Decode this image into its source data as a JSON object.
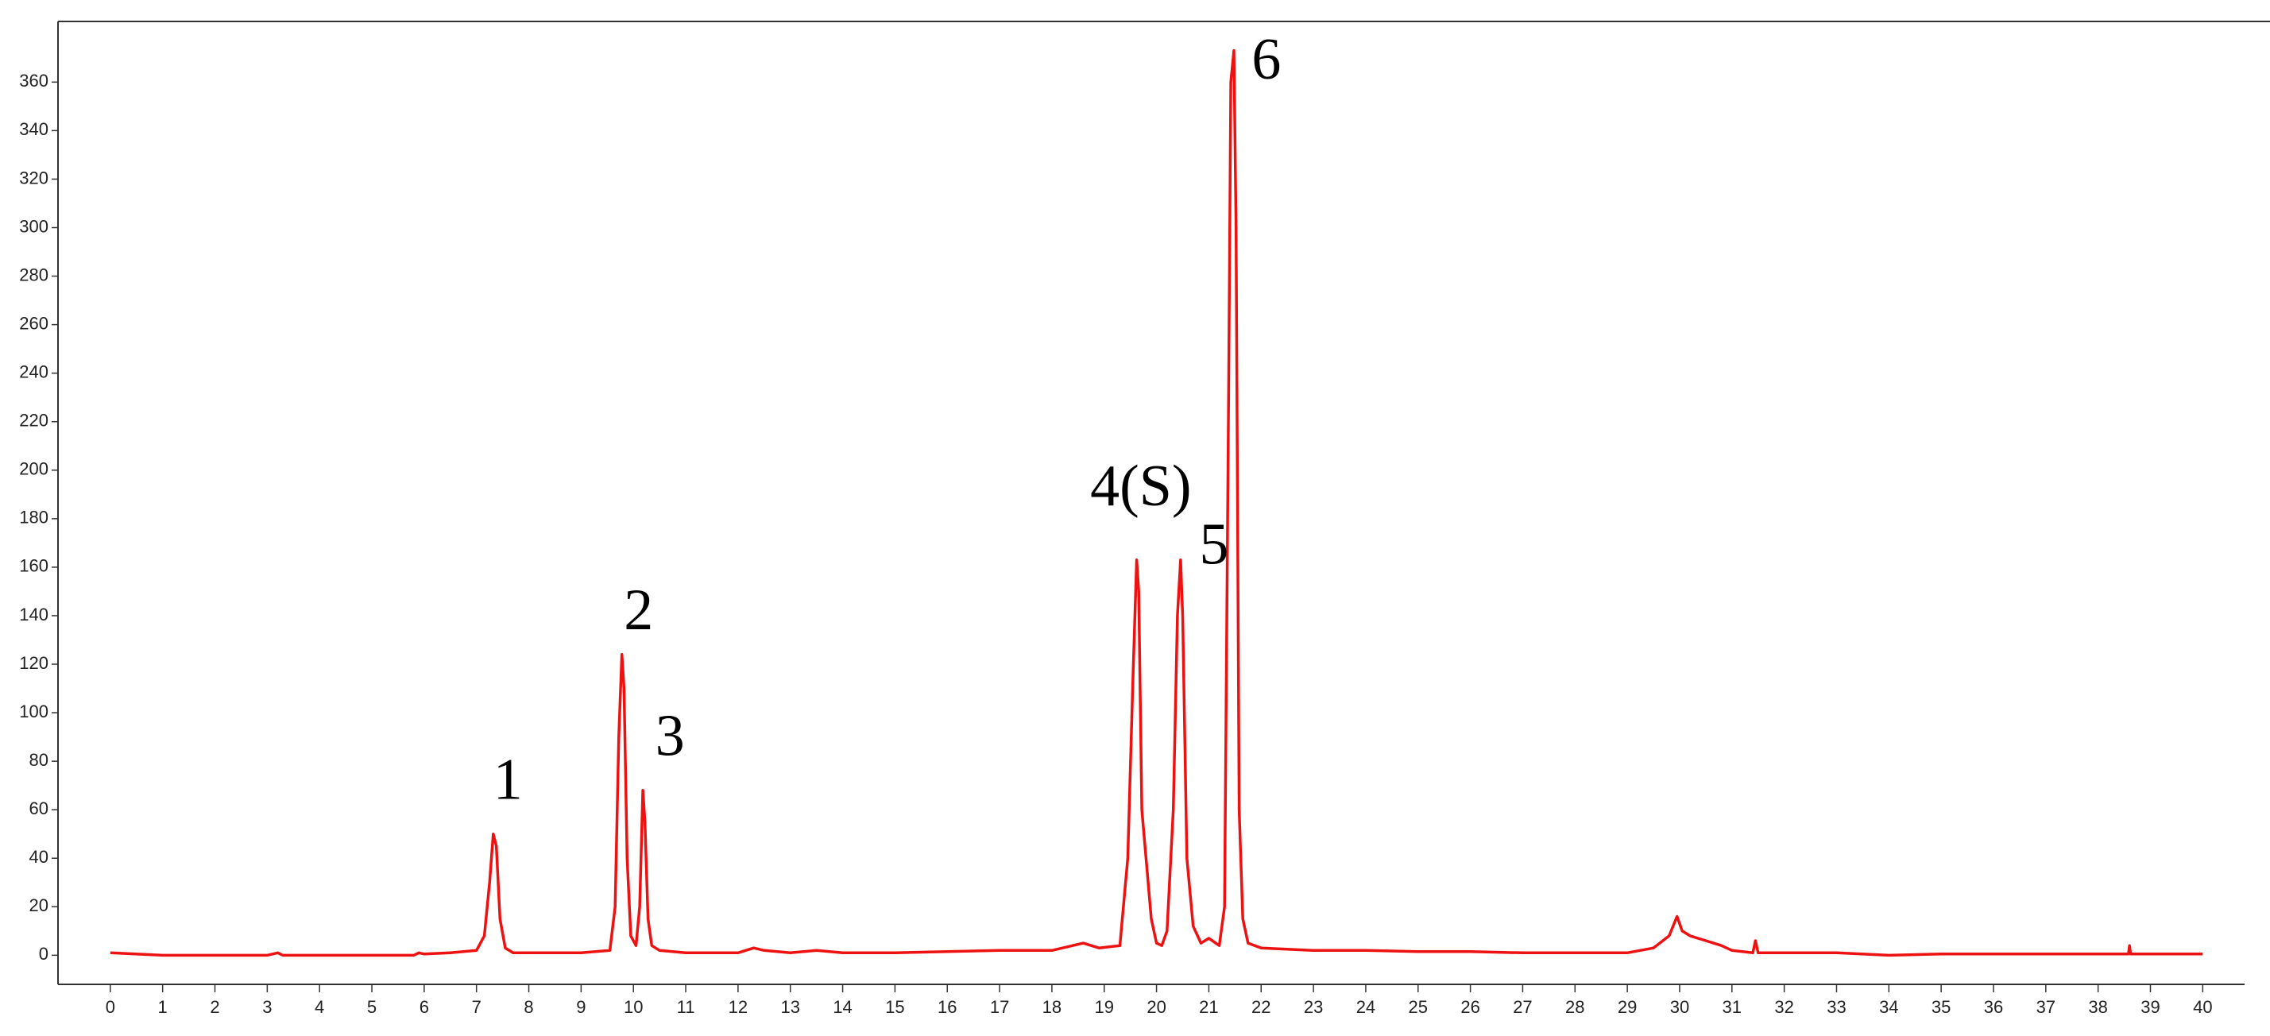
{
  "chart_data": {
    "type": "line",
    "annotations": [
      "1",
      "2",
      "3",
      "4(S)",
      "5",
      "6"
    ],
    "series": [
      {
        "color": "#ee1111",
        "x": [
          0,
          1,
          2,
          3,
          3.2,
          3.3,
          4,
          5,
          5.8,
          5.9,
          6,
          6.5,
          7,
          7.15,
          7.25,
          7.32,
          7.38,
          7.45,
          7.55,
          7.7,
          8,
          9,
          9.55,
          9.65,
          9.72,
          9.78,
          9.82,
          9.88,
          9.95,
          10.05,
          10.12,
          10.18,
          10.22,
          10.28,
          10.35,
          10.5,
          11,
          12,
          12.3,
          12.5,
          13,
          13.5,
          14,
          15,
          16,
          17,
          18,
          18.6,
          18.9,
          19.3,
          19.45,
          19.55,
          19.62,
          19.66,
          19.72,
          19.8,
          19.9,
          20.0,
          20.1,
          20.2,
          20.32,
          20.4,
          20.46,
          20.5,
          20.58,
          20.7,
          20.85,
          21.0,
          21.2,
          21.3,
          21.38,
          21.42,
          21.48,
          21.52,
          21.58,
          21.65,
          21.75,
          22,
          23,
          24,
          25,
          26,
          27,
          28,
          29,
          29.5,
          29.8,
          29.95,
          30.05,
          30.2,
          30.5,
          30.8,
          31,
          31.4,
          31.45,
          31.5,
          32,
          33,
          34,
          35,
          36,
          37,
          38,
          38.58,
          38.6,
          38.62,
          39,
          40
        ],
        "values": [
          1,
          0,
          0,
          0,
          1,
          0,
          0,
          0,
          0,
          1,
          0.5,
          1,
          2,
          8,
          30,
          50,
          45,
          15,
          3,
          1,
          1,
          1,
          2,
          20,
          90,
          124,
          110,
          40,
          8,
          4,
          20,
          68,
          55,
          15,
          4,
          2,
          1,
          1,
          3,
          2,
          1,
          2,
          1,
          1,
          1.5,
          2,
          2,
          5,
          3,
          4,
          40,
          115,
          163,
          150,
          60,
          40,
          15,
          5,
          4,
          10,
          60,
          140,
          163,
          140,
          40,
          12,
          5,
          7,
          4,
          20,
          235,
          360,
          373,
          300,
          60,
          15,
          5,
          3,
          2,
          2,
          1.5,
          1.5,
          1,
          1,
          1,
          3,
          8,
          16,
          10,
          8,
          6,
          4,
          2,
          1,
          6,
          1,
          1,
          1,
          0,
          0.5,
          0.5,
          0.5,
          0.5,
          0.5,
          4,
          0.5,
          0.5,
          0.5
        ]
      }
    ],
    "xlim": [
      -1,
      40.8
    ],
    "ylim": [
      -12,
      385
    ],
    "xticks": [
      0,
      1,
      2,
      3,
      4,
      5,
      6,
      7,
      8,
      9,
      10,
      11,
      12,
      13,
      14,
      15,
      16,
      17,
      18,
      19,
      20,
      21,
      22,
      23,
      24,
      25,
      26,
      27,
      28,
      29,
      30,
      31,
      32,
      33,
      34,
      35,
      36,
      37,
      38,
      39,
      40
    ],
    "yticks": [
      0,
      20,
      40,
      60,
      80,
      100,
      120,
      140,
      160,
      180,
      200,
      220,
      240,
      260,
      280,
      300,
      320,
      340,
      360
    ]
  }
}
